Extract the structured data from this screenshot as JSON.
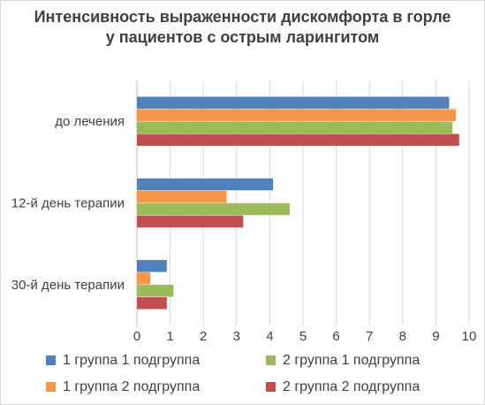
{
  "chart_data": {
    "type": "bar",
    "orientation": "horizontal",
    "title": [
      "Интенсивность выраженности дискомфорта в горле",
      "у пациентов с острым ларингитом"
    ],
    "categories": [
      "до лечения",
      "12-й день терапии",
      "30-й день терапии"
    ],
    "series": [
      {
        "name": "1 группа 1 подгруппа",
        "color": "#4f81bd",
        "values": [
          9.4,
          4.1,
          0.9
        ]
      },
      {
        "name": "1 группа 2 подгруппа",
        "color": "#f79646",
        "values": [
          9.6,
          2.7,
          0.4
        ]
      },
      {
        "name": "2 группа 1 подгруппа",
        "color": "#9bbb59",
        "values": [
          9.5,
          4.6,
          1.1
        ]
      },
      {
        "name": "2 группа 2 подгруппа",
        "color": "#c0504d",
        "values": [
          9.7,
          3.2,
          0.9
        ]
      }
    ],
    "xlim": [
      0,
      10
    ],
    "xticks": [
      "0",
      "1",
      "2",
      "3",
      "4",
      "5",
      "6",
      "7",
      "8",
      "9",
      "10"
    ],
    "grid": "vertical",
    "legend_position": "bottom"
  }
}
